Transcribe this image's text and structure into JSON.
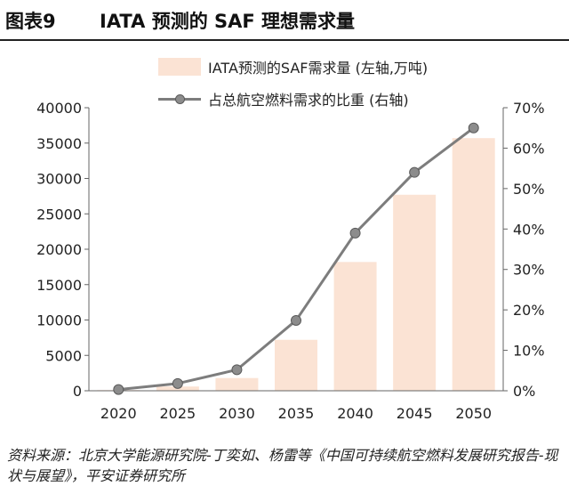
{
  "header": {
    "figure_label": "图表9",
    "title": "IATA 预测的 SAF 理想需求量"
  },
  "legend": {
    "bar_label": "IATA预测的SAF需求量 (左轴,万吨)",
    "line_label": "占总航空燃料需求的比重 (右轴)"
  },
  "colors": {
    "bar": "#fbe3d4",
    "line": "#7d7d7d",
    "marker": "#8c8c8c",
    "marker_edge": "#5a5a5a",
    "axis": "#666666"
  },
  "chart_data": {
    "type": "bar",
    "title": "IATA 预测的 SAF 理想需求量",
    "categories": [
      "2020",
      "2025",
      "2030",
      "2035",
      "2040",
      "2045",
      "2050"
    ],
    "series": [
      {
        "name": "IATA预测的SAF需求量 (左轴,万吨)",
        "type": "bar",
        "axis": "left",
        "values": [
          100,
          600,
          1800,
          7200,
          18200,
          27700,
          35700
        ]
      },
      {
        "name": "占总航空燃料需求的比重 (右轴)",
        "type": "line",
        "axis": "right",
        "values": [
          0.3,
          1.8,
          5.2,
          17.4,
          39.0,
          54.0,
          65.0
        ]
      }
    ],
    "y_left": {
      "min": 0,
      "max": 40000,
      "ticks": [
        "0",
        "5000",
        "10000",
        "15000",
        "20000",
        "25000",
        "30000",
        "35000",
        "40000"
      ]
    },
    "y_right": {
      "min": 0,
      "max": 70,
      "ticks": [
        "0%",
        "10%",
        "20%",
        "30%",
        "40%",
        "50%",
        "60%",
        "70%"
      ]
    },
    "grid": false,
    "legend_position": "top-right"
  },
  "source": {
    "text": "资料来源：北京大学能源研究院-丁奕如、杨雷等《中国可持续航空燃料发展研究报告-现状与展望》，平安证券研究所"
  }
}
